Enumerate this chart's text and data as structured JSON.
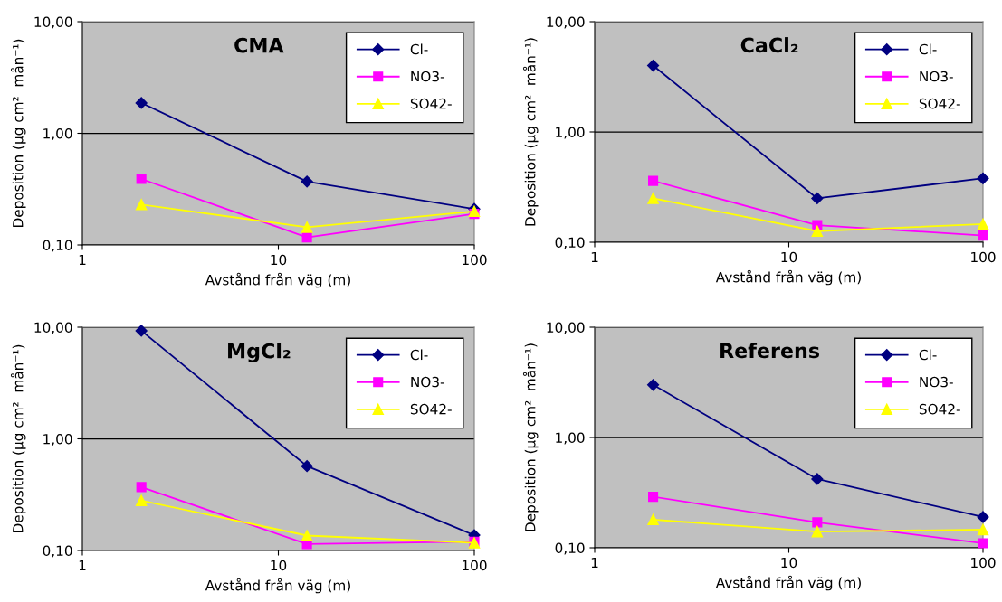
{
  "chart_data": [
    {
      "type": "line",
      "title": "CMA",
      "xlabel": "Avstånd från väg (m)",
      "ylabel": "Deposition (µg cm²  mån⁻¹)",
      "log": "xy",
      "grid": "y",
      "legend": "top right",
      "x": [
        2,
        14,
        100
      ],
      "xlim": [
        1,
        100
      ],
      "xticks": [
        1,
        10,
        100
      ],
      "ylim": [
        0.1,
        10
      ],
      "yticks": [
        {
          "value": 0.1,
          "label": "0,10"
        },
        {
          "value": 1,
          "label": "1,00"
        },
        {
          "value": 10,
          "label": "10,00"
        }
      ],
      "series": [
        {
          "name": "Cl-",
          "color": "#000080",
          "marker": "diamond",
          "values": [
            1.87,
            0.37,
            0.21
          ]
        },
        {
          "name": "NO3-",
          "color": "#ff00ff",
          "marker": "square",
          "values": [
            0.39,
            0.117,
            0.19
          ]
        },
        {
          "name": "SO42-",
          "color": "#ffff00",
          "marker": "triangle",
          "values": [
            0.23,
            0.144,
            0.2
          ]
        }
      ]
    },
    {
      "type": "line",
      "title": "CaCl₂",
      "xlabel": "Avstånd från väg (m)",
      "ylabel": "Deposition (µg cm²  mån⁻¹)",
      "log": "xy",
      "grid": "y",
      "legend": "top right",
      "x": [
        2,
        14,
        100
      ],
      "xlim": [
        1,
        100
      ],
      "xticks": [
        1,
        10,
        100
      ],
      "ylim": [
        0.1,
        10
      ],
      "yticks": [
        {
          "value": 0.1,
          "label": "0,10"
        },
        {
          "value": 1,
          "label": "1,00"
        },
        {
          "value": 10,
          "label": "10,00"
        }
      ],
      "series": [
        {
          "name": "Cl-",
          "color": "#000080",
          "marker": "diamond",
          "values": [
            4.0,
            0.25,
            0.38
          ]
        },
        {
          "name": "NO3-",
          "color": "#ff00ff",
          "marker": "square",
          "values": [
            0.36,
            0.143,
            0.115
          ]
        },
        {
          "name": "SO42-",
          "color": "#ffff00",
          "marker": "triangle",
          "values": [
            0.25,
            0.126,
            0.146
          ]
        }
      ]
    },
    {
      "type": "line",
      "title": "MgCl₂",
      "xlabel": "Avstånd från väg (m)",
      "ylabel": "Deposition (µg cm²  mån⁻¹)",
      "log": "xy",
      "grid": "y",
      "legend": "top right",
      "x": [
        2,
        14,
        100
      ],
      "xlim": [
        1,
        100
      ],
      "xticks": [
        1,
        10,
        100
      ],
      "ylim": [
        0.1,
        10
      ],
      "yticks": [
        {
          "value": 0.1,
          "label": "0,10"
        },
        {
          "value": 1,
          "label": "1,00"
        },
        {
          "value": 10,
          "label": "10,00"
        }
      ],
      "series": [
        {
          "name": "Cl-",
          "color": "#000080",
          "marker": "diamond",
          "values": [
            9.3,
            0.57,
            0.137
          ]
        },
        {
          "name": "NO3-",
          "color": "#ff00ff",
          "marker": "square",
          "values": [
            0.37,
            0.114,
            0.12
          ]
        },
        {
          "name": "SO42-",
          "color": "#ffff00",
          "marker": "triangle",
          "values": [
            0.28,
            0.136,
            0.117
          ]
        }
      ]
    },
    {
      "type": "line",
      "title": "Referens",
      "xlabel": "Avstånd från väg (m)",
      "ylabel": "Deposition (µg cm²  mån⁻¹)",
      "log": "xy",
      "grid": "y",
      "legend": "top right",
      "x": [
        2,
        14,
        100
      ],
      "xlim": [
        1,
        100
      ],
      "xticks": [
        1,
        10,
        100
      ],
      "ylim": [
        0.1,
        10
      ],
      "yticks": [
        {
          "value": 0.1,
          "label": "0,10"
        },
        {
          "value": 1,
          "label": "1,00"
        },
        {
          "value": 10,
          "label": "10,00"
        }
      ],
      "series": [
        {
          "name": "Cl-",
          "color": "#000080",
          "marker": "diamond",
          "values": [
            3.0,
            0.42,
            0.19
          ]
        },
        {
          "name": "NO3-",
          "color": "#ff00ff",
          "marker": "square",
          "values": [
            0.29,
            0.17,
            0.11
          ]
        },
        {
          "name": "SO42-",
          "color": "#ffff00",
          "marker": "triangle",
          "values": [
            0.18,
            0.14,
            0.146
          ]
        }
      ]
    }
  ]
}
